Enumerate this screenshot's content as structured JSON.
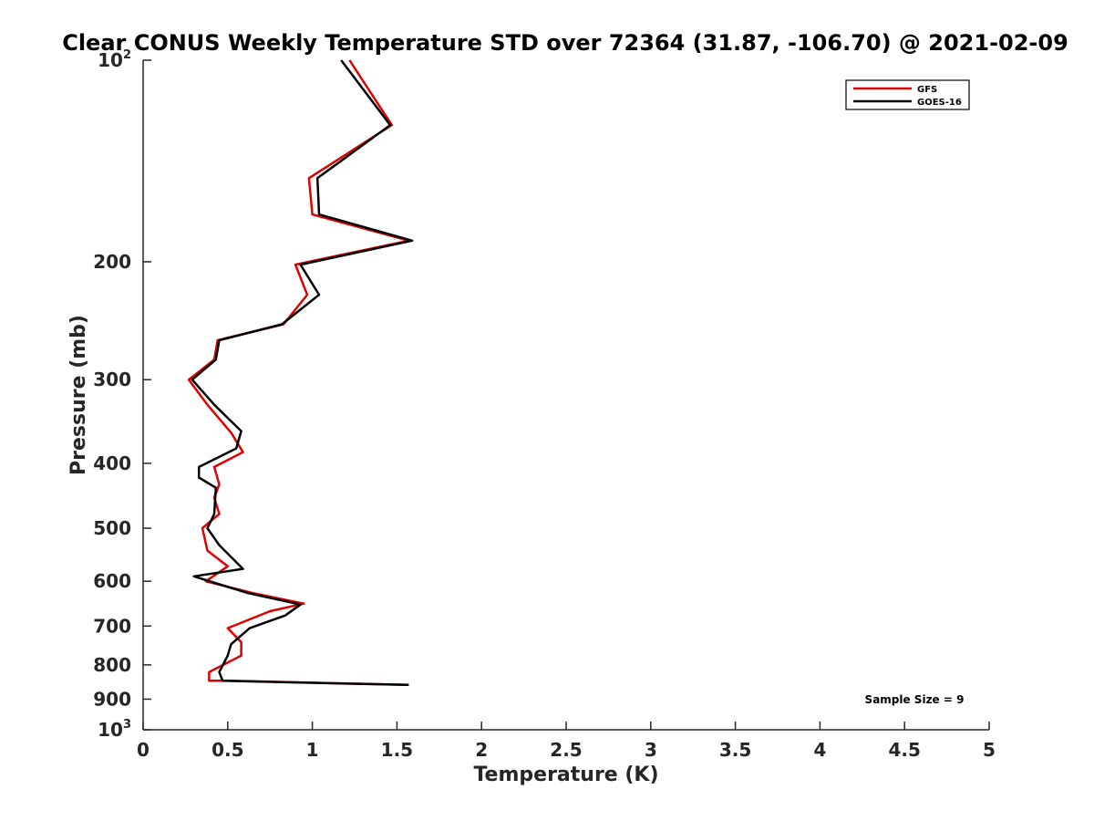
{
  "chart_data": {
    "type": "line",
    "title": "Clear CONUS Weekly Temperature STD over 72364 (31.87, -106.70) @ 2021-02-09",
    "xlabel": "Temperature (K)",
    "ylabel": "Pressure (mb)",
    "xlim": [
      0,
      5
    ],
    "ylim": [
      100,
      1000
    ],
    "y_scale": "log",
    "y_reversed": true,
    "grid": false,
    "legend_position": "top-right",
    "x_ticks": [
      {
        "value": 0,
        "label": "0"
      },
      {
        "value": 0.5,
        "label": "0.5"
      },
      {
        "value": 1,
        "label": "1"
      },
      {
        "value": 1.5,
        "label": "1.5"
      },
      {
        "value": 2,
        "label": "2"
      },
      {
        "value": 2.5,
        "label": "2.5"
      },
      {
        "value": 3,
        "label": "3"
      },
      {
        "value": 3.5,
        "label": "3.5"
      },
      {
        "value": 4,
        "label": "4"
      },
      {
        "value": 4.5,
        "label": "4.5"
      },
      {
        "value": 5,
        "label": "5"
      }
    ],
    "y_ticks": [
      {
        "value": 100,
        "label": "10",
        "sup": "2"
      },
      {
        "value": 200,
        "label": "200"
      },
      {
        "value": 300,
        "label": "300"
      },
      {
        "value": 400,
        "label": "400"
      },
      {
        "value": 500,
        "label": "500"
      },
      {
        "value": 600,
        "label": "600"
      },
      {
        "value": 700,
        "label": "700"
      },
      {
        "value": 800,
        "label": "800"
      },
      {
        "value": 900,
        "label": "900"
      },
      {
        "value": 1000,
        "label": "10",
        "sup": "3"
      }
    ],
    "annotation": "Sample Size = 9",
    "series": [
      {
        "name": "GFS",
        "color": "#e00000",
        "points": [
          [
            1.22,
            100
          ],
          [
            1.47,
            125
          ],
          [
            0.98,
            150
          ],
          [
            1.0,
            170
          ],
          [
            1.57,
            186
          ],
          [
            0.9,
            202
          ],
          [
            0.97,
            224
          ],
          [
            0.83,
            248
          ],
          [
            0.44,
            262
          ],
          [
            0.42,
            280
          ],
          [
            0.27,
            300
          ],
          [
            0.38,
            327
          ],
          [
            0.52,
            360
          ],
          [
            0.59,
            385
          ],
          [
            0.42,
            405
          ],
          [
            0.45,
            430
          ],
          [
            0.42,
            450
          ],
          [
            0.45,
            476
          ],
          [
            0.35,
            500
          ],
          [
            0.38,
            540
          ],
          [
            0.5,
            570
          ],
          [
            0.37,
            600
          ],
          [
            0.65,
            625
          ],
          [
            0.95,
            648
          ],
          [
            0.75,
            665
          ],
          [
            0.5,
            705
          ],
          [
            0.58,
            740
          ],
          [
            0.58,
            775
          ],
          [
            0.39,
            820
          ],
          [
            0.39,
            845
          ],
          [
            0.52,
            845
          ],
          [
            1.55,
            857
          ]
        ]
      },
      {
        "name": "GOES-16",
        "color": "#000000",
        "points": [
          [
            1.17,
            100
          ],
          [
            1.46,
            125
          ],
          [
            1.03,
            150
          ],
          [
            1.04,
            170
          ],
          [
            1.59,
            186
          ],
          [
            0.93,
            202
          ],
          [
            1.04,
            224
          ],
          [
            0.82,
            248
          ],
          [
            0.45,
            262
          ],
          [
            0.43,
            280
          ],
          [
            0.29,
            300
          ],
          [
            0.42,
            327
          ],
          [
            0.58,
            358
          ],
          [
            0.55,
            380
          ],
          [
            0.33,
            405
          ],
          [
            0.33,
            420
          ],
          [
            0.43,
            435
          ],
          [
            0.42,
            476
          ],
          [
            0.38,
            500
          ],
          [
            0.45,
            530
          ],
          [
            0.59,
            575
          ],
          [
            0.3,
            590
          ],
          [
            0.62,
            625
          ],
          [
            0.93,
            650
          ],
          [
            0.84,
            675
          ],
          [
            0.63,
            705
          ],
          [
            0.52,
            745
          ],
          [
            0.5,
            775
          ],
          [
            0.45,
            820
          ],
          [
            0.47,
            845
          ],
          [
            1.57,
            857
          ]
        ]
      }
    ]
  }
}
